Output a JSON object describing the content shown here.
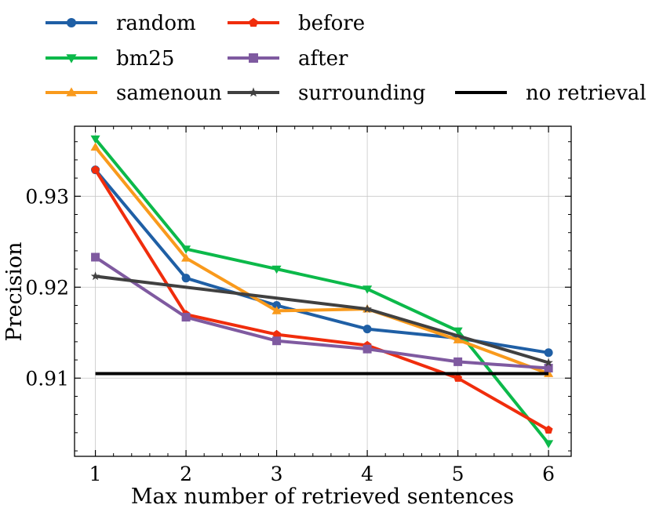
{
  "chart_data": {
    "type": "line",
    "title": "",
    "xlabel": "Max number of retrieved sentences",
    "ylabel": "Precision",
    "x": [
      1,
      2,
      3,
      4,
      5,
      6
    ],
    "xticks": [
      "1",
      "2",
      "3",
      "4",
      "5",
      "6"
    ],
    "yticks": [
      {
        "value": 0.91,
        "label": "0.91"
      },
      {
        "value": 0.92,
        "label": "0.92"
      },
      {
        "value": 0.93,
        "label": "0.93"
      }
    ],
    "xlim": [
      0.77,
      6.25
    ],
    "ylim": [
      0.9014,
      0.9377
    ],
    "grid": true,
    "legend_position": "top",
    "series": [
      {
        "name": "random",
        "color": "#1f5fa5",
        "marker": "circle",
        "values": [
          0.9329,
          0.921,
          0.918,
          0.9154,
          0.9144,
          0.9128
        ]
      },
      {
        "name": "bm25",
        "color": "#0cb94a",
        "marker": "triangle-down",
        "values": [
          0.9363,
          0.9242,
          0.922,
          0.9198,
          0.9152,
          0.9028
        ]
      },
      {
        "name": "samenoun",
        "color": "#f99a1c",
        "marker": "triangle-up",
        "values": [
          0.9354,
          0.9232,
          0.9174,
          0.9176,
          0.9142,
          0.9105
        ]
      },
      {
        "name": "before",
        "color": "#f02d0c",
        "marker": "pentagon",
        "values": [
          0.9329,
          0.917,
          0.9148,
          0.9136,
          0.91,
          0.9043
        ]
      },
      {
        "name": "after",
        "color": "#7f5aa0",
        "marker": "square",
        "values": [
          0.9233,
          0.9167,
          0.9141,
          0.9132,
          0.9118,
          0.9111
        ]
      },
      {
        "name": "surrounding",
        "color": "#404040",
        "marker": "star",
        "values": [
          0.9212,
          null,
          null,
          0.9176,
          null,
          0.9117
        ]
      },
      {
        "name": "no retrieval",
        "color": "#000000",
        "marker": "none",
        "values": [
          0.9105,
          0.9105,
          0.9105,
          0.9105,
          0.9105,
          0.9105
        ]
      }
    ]
  }
}
